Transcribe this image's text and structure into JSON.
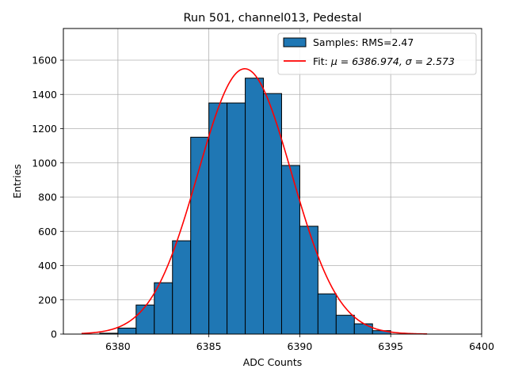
{
  "chart_data": {
    "type": "bar",
    "title": "Run 501, channel013, Pedestal",
    "xlabel": "ADC Counts",
    "ylabel": "Entries",
    "xlim": [
      6377,
      6400
    ],
    "ylim": [
      0,
      1785
    ],
    "xticks": [
      6380,
      6385,
      6390,
      6395,
      6400
    ],
    "yticks": [
      0,
      200,
      400,
      600,
      800,
      1000,
      1200,
      1400,
      1600
    ],
    "grid": true,
    "legend_position": "top-right",
    "histogram": {
      "name": "Samples: RMS=2.47",
      "color": "#1f77b4",
      "edge_color": "#000000",
      "bin_edges": [
        6378,
        6379,
        6380,
        6381,
        6382,
        6383,
        6384,
        6385,
        6386,
        6387,
        6388,
        6389,
        6390,
        6391,
        6392,
        6393,
        6394,
        6395,
        6396,
        6397,
        6398,
        6399
      ],
      "counts": [
        0,
        5,
        35,
        170,
        300,
        545,
        1150,
        1350,
        1350,
        1495,
        1405,
        985,
        630,
        235,
        110,
        60,
        20,
        0,
        0,
        0,
        0
      ]
    },
    "fit": {
      "name_prefix": "Fit: ",
      "name_math": "μ = 6386.974, σ = 2.573",
      "color": "#ff0000",
      "mu": 6386.974,
      "sigma": 2.573,
      "amplitude": 1550,
      "x_range": [
        6378,
        6397
      ]
    }
  }
}
